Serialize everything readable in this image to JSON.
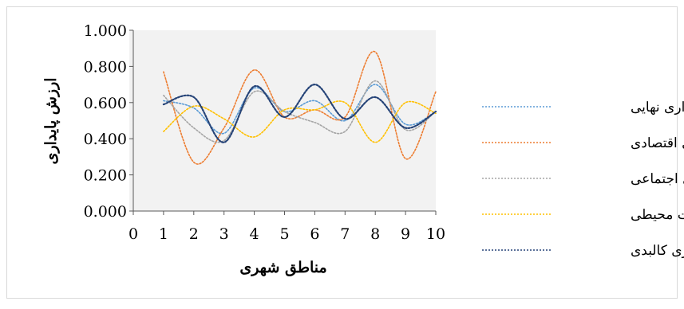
{
  "chart_data": {
    "type": "line",
    "title": "",
    "xlabel": "مناطق شهری",
    "ylabel": "ارزش پایداری",
    "x": [
      1,
      2,
      3,
      4,
      5,
      6,
      7,
      8,
      9,
      10
    ],
    "xlim": [
      0,
      10
    ],
    "ylim": [
      0,
      1
    ],
    "x_ticks": [
      "0",
      "1",
      "2",
      "3",
      "4",
      "5",
      "6",
      "7",
      "8",
      "9",
      "10"
    ],
    "y_ticks": [
      "0.000",
      "0.200",
      "0.400",
      "0.600",
      "0.800",
      "1.000"
    ],
    "grid": false,
    "legend": "right",
    "series": [
      {
        "name": "پایداری نهایی",
        "color": "#5b9bd5",
        "values": [
          0.61,
          0.57,
          0.43,
          0.68,
          0.55,
          0.61,
          0.5,
          0.7,
          0.48,
          0.55
        ]
      },
      {
        "name": "پایداری اقتصادی",
        "color": "#ed7d31",
        "values": [
          0.77,
          0.27,
          0.46,
          0.78,
          0.52,
          0.56,
          0.52,
          0.88,
          0.29,
          0.66
        ]
      },
      {
        "name": "پایداری اجتماعی",
        "color": "#a5a5a5",
        "values": [
          0.64,
          0.46,
          0.39,
          0.66,
          0.55,
          0.49,
          0.44,
          0.72,
          0.45,
          0.55
        ]
      },
      {
        "name": "پایداری زیست محیطی",
        "color": "#ffc000",
        "values": [
          0.44,
          0.58,
          0.51,
          0.41,
          0.56,
          0.56,
          0.6,
          0.38,
          0.6,
          0.54
        ]
      },
      {
        "name": "پایداری کالبدی",
        "color": "#264478",
        "values": [
          0.59,
          0.63,
          0.38,
          0.69,
          0.52,
          0.7,
          0.51,
          0.63,
          0.46,
          0.55
        ]
      }
    ]
  }
}
